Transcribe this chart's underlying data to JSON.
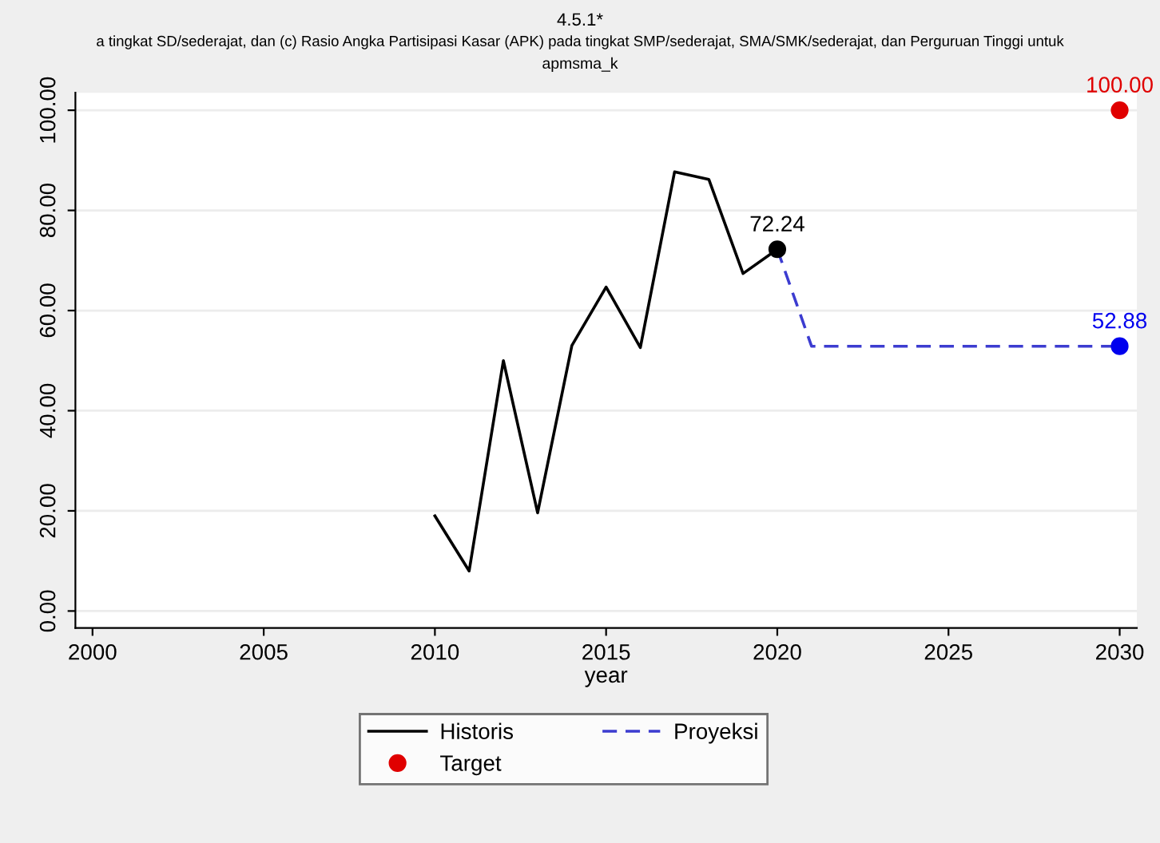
{
  "chart_data": {
    "type": "line",
    "title": "4.5.1*",
    "subtitle": "a tingkat SD/sederajat, dan (c) Rasio Angka Partisipasi Kasar (APK) pada tingkat SMP/sederajat, SMA/SMK/sederajat, dan Perguruan Tinggi untuk",
    "annotations": [
      "apmsma_k"
    ],
    "xlabel": "year",
    "series": [
      {
        "name": "Historis",
        "color": "#000000",
        "line_style": "solid",
        "x": [
          2010,
          2011,
          2012,
          2013,
          2014,
          2015,
          2016,
          2017,
          2018,
          2019,
          2020
        ],
        "values": [
          19,
          8,
          50,
          19.6,
          53,
          64.7,
          52.6,
          87.7,
          86.2,
          67.4,
          72.24
        ]
      },
      {
        "name": "Proyeksi",
        "color": "#3c3cd0",
        "line_style": "dashed",
        "x": [
          2020,
          2021,
          2030
        ],
        "values": [
          72.24,
          52.88,
          52.88
        ]
      },
      {
        "name": "Target",
        "type": "scatter",
        "color": "#e00000",
        "marker": "circle",
        "x": [
          2030
        ],
        "values": [
          100
        ],
        "value_labels": [
          "100.00"
        ]
      },
      {
        "type": "scatter",
        "color": "#000000",
        "marker": "circle",
        "x": [
          2020
        ],
        "values": [
          72.24
        ],
        "value_labels": [
          "72.24"
        ]
      },
      {
        "type": "scatter",
        "color": "#0000ee",
        "marker": "circle",
        "x": [
          2030
        ],
        "values": [
          52.88
        ],
        "value_labels": [
          "52.88"
        ]
      }
    ],
    "xlim": [
      1999.5,
      2030.5
    ],
    "xticks": [
      2000,
      2005,
      2010,
      2015,
      2020,
      2025,
      2030
    ],
    "ylim": [
      -3.4,
      103.5
    ],
    "yticks": [
      {
        "value": 0,
        "label": "0.00"
      },
      {
        "value": 20,
        "label": "20.00"
      },
      {
        "value": 40,
        "label": "40.00"
      },
      {
        "value": 60,
        "label": "60.00"
      },
      {
        "value": 80,
        "label": "80.00"
      },
      {
        "value": 100,
        "label": "100.00"
      }
    ],
    "grid": "y",
    "legend": "bottom"
  }
}
